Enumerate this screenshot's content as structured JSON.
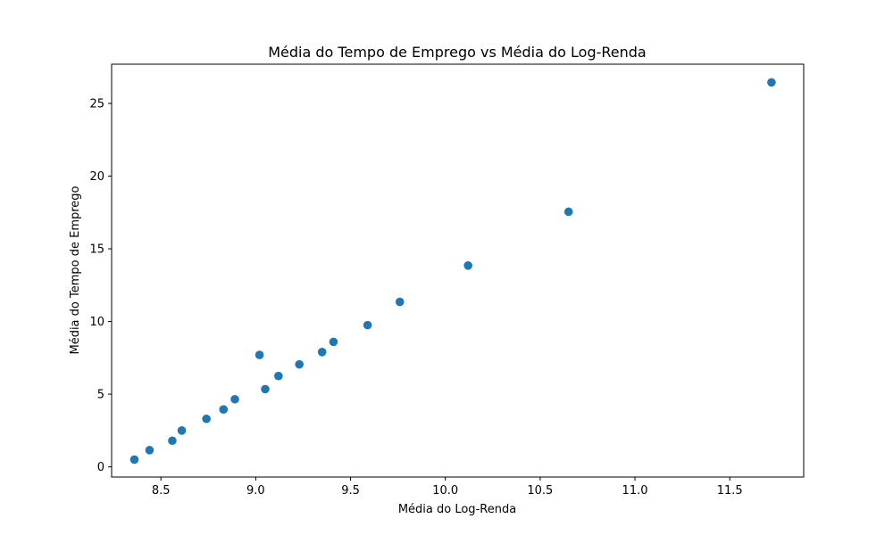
{
  "chart_data": {
    "type": "scatter",
    "title": "Média do Tempo de Emprego vs Média do Log-Renda",
    "xlabel": "Média do Log-Renda",
    "ylabel": "Média do Tempo de Emprego",
    "xlim": [
      8.24,
      11.89
    ],
    "ylim": [
      -0.7,
      27.7
    ],
    "xticks": [
      8.5,
      9.0,
      9.5,
      10.0,
      10.5,
      11.0,
      11.5
    ],
    "xtick_labels": [
      "8.5",
      "9.0",
      "9.5",
      "10.0",
      "10.5",
      "11.0",
      "11.5"
    ],
    "yticks": [
      0,
      5,
      10,
      15,
      20,
      25
    ],
    "ytick_labels": [
      "0",
      "5",
      "10",
      "15",
      "20",
      "25"
    ],
    "grid": false,
    "marker_color": "#1f77b4",
    "points": [
      {
        "x": 8.36,
        "y": 0.5
      },
      {
        "x": 8.44,
        "y": 1.15
      },
      {
        "x": 8.56,
        "y": 1.8
      },
      {
        "x": 8.61,
        "y": 2.5
      },
      {
        "x": 8.74,
        "y": 3.3
      },
      {
        "x": 8.83,
        "y": 3.95
      },
      {
        "x": 8.89,
        "y": 4.65
      },
      {
        "x": 9.02,
        "y": 7.7
      },
      {
        "x": 9.05,
        "y": 5.35
      },
      {
        "x": 9.12,
        "y": 6.25
      },
      {
        "x": 9.23,
        "y": 7.05
      },
      {
        "x": 9.35,
        "y": 7.9
      },
      {
        "x": 9.41,
        "y": 8.6
      },
      {
        "x": 9.59,
        "y": 9.75
      },
      {
        "x": 9.76,
        "y": 11.35
      },
      {
        "x": 10.12,
        "y": 13.85
      },
      {
        "x": 10.65,
        "y": 17.55
      },
      {
        "x": 11.72,
        "y": 26.45
      }
    ]
  }
}
